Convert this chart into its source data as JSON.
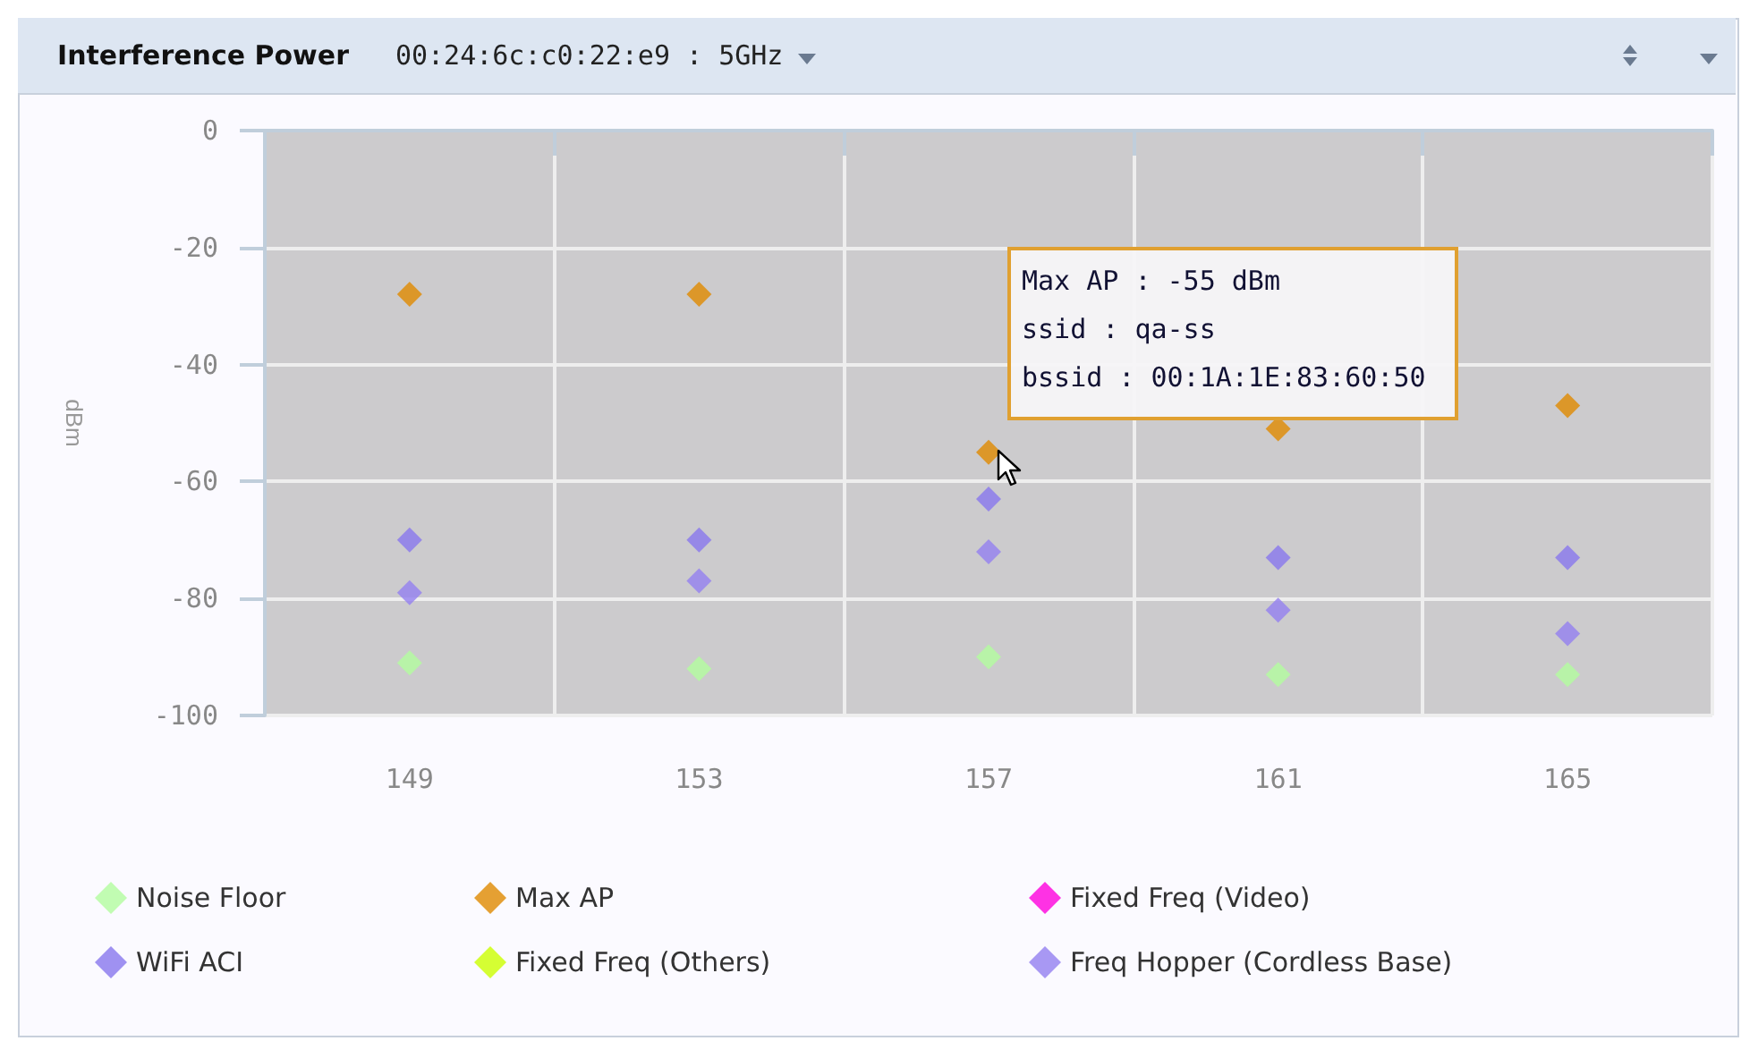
{
  "chart_data": {
    "type": "scatter",
    "title": "Interference Power",
    "subtitle": "00:24:6c:c0:22:e9 : 5GHz",
    "ylabel": "dBm",
    "categories": [
      "149",
      "153",
      "157",
      "161",
      "165"
    ],
    "series": [
      {
        "name": "Noise Floor",
        "color": "#b3fc9f",
        "values": [
          -91,
          -92,
          -90,
          -93,
          -93
        ]
      },
      {
        "name": "WiFi ACI",
        "color": "#8877ee",
        "values": [
          -70,
          -70,
          -63,
          -73,
          -73
        ]
      },
      {
        "name": "Max AP",
        "color": "#e08a00",
        "values": [
          -28,
          -28,
          -55,
          -51,
          -47
        ]
      },
      {
        "name": "Fixed Freq (Others)",
        "color": "#ccff00",
        "values": [
          null,
          null,
          null,
          null,
          null
        ]
      },
      {
        "name": "Fixed Freq (Video)",
        "color": "#ff00dd",
        "values": [
          null,
          null,
          null,
          null,
          null
        ]
      },
      {
        "name": "Freq Hopper (Cordless Base)",
        "color": "#9380f0",
        "values": [
          -79,
          -77,
          -72,
          -82,
          -86
        ]
      }
    ],
    "ylim": [
      -100,
      0
    ],
    "yticks": [
      -100,
      -80,
      -60,
      -40,
      -20,
      0
    ],
    "grid": true,
    "legend": "bottom",
    "marker": "diamond",
    "annotations": [
      "Max AP : -55 dBm\nssid : qa-ss\nbssid : 00:1A:1E:83:60:50"
    ]
  }
}
